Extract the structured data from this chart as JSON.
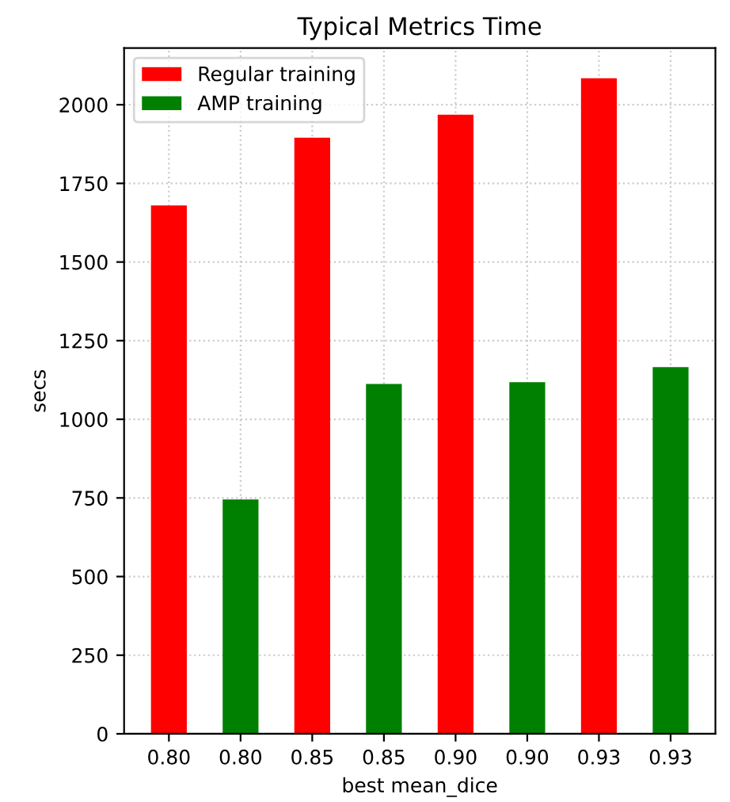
{
  "chart_data": {
    "type": "bar",
    "title": "Typical Metrics Time",
    "xlabel": "best mean_dice",
    "ylabel": "secs",
    "categories": [
      "0.80",
      "0.80",
      "0.85",
      "0.85",
      "0.90",
      "0.90",
      "0.93",
      "0.93"
    ],
    "series": [
      {
        "name": "Regular training",
        "color": "#ff0000",
        "values": [
          1680,
          null,
          1895,
          null,
          1968,
          null,
          2084,
          null
        ]
      },
      {
        "name": "AMP training",
        "color": "#008000",
        "values": [
          null,
          745,
          null,
          1112,
          null,
          1118,
          null,
          1166
        ]
      }
    ],
    "ylim": [
      0,
      2180
    ],
    "yticks": [
      0,
      250,
      500,
      750,
      1000,
      1250,
      1500,
      1750,
      2000
    ],
    "grid": true,
    "legend": "top left"
  }
}
